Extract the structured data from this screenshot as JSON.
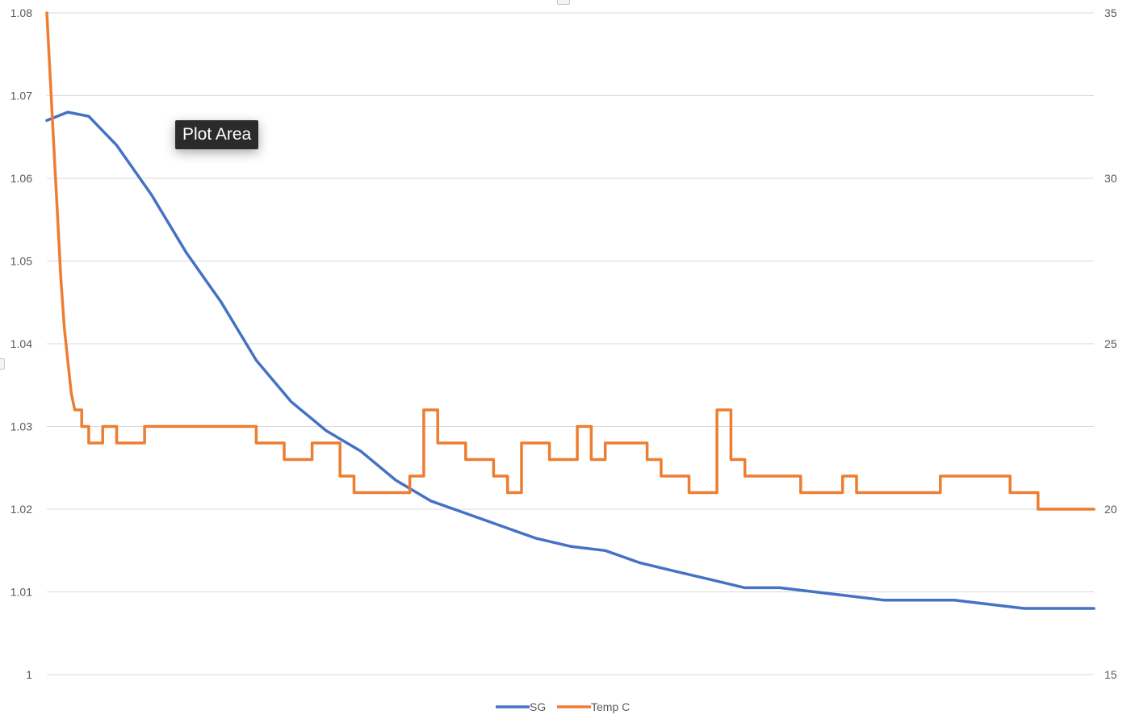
{
  "chart_data": {
    "type": "line",
    "y_left": {
      "ticks": [
        "1",
        "1.01",
        "1.02",
        "1.03",
        "1.04",
        "1.05",
        "1.06",
        "1.07",
        "1.08"
      ],
      "ylim": [
        1.0,
        1.08
      ]
    },
    "y_right": {
      "ticks": [
        "15",
        "20",
        "25",
        "30",
        "35"
      ],
      "ylim": [
        15,
        35
      ]
    },
    "grid": true,
    "legend_position": "bottom",
    "series": [
      {
        "name": "SG",
        "axis": "left",
        "color": "#4472c4",
        "x": [
          0,
          0.3,
          0.6,
          1,
          1.5,
          2,
          2.5,
          3,
          3.5,
          4,
          4.5,
          5,
          5.5,
          6,
          6.5,
          7,
          7.5,
          8,
          8.5,
          9,
          9.5,
          10,
          10.5,
          11,
          11.5,
          12,
          12.5,
          13,
          13.5,
          14,
          14.5,
          15
        ],
        "values": [
          1.067,
          1.068,
          1.0675,
          1.064,
          1.058,
          1.051,
          1.045,
          1.038,
          1.033,
          1.0295,
          1.027,
          1.0235,
          1.021,
          1.0195,
          1.018,
          1.0165,
          1.0155,
          1.015,
          1.0135,
          1.0125,
          1.0115,
          1.0105,
          1.0105,
          1.01,
          1.0095,
          1.009,
          1.009,
          1.009,
          1.0085,
          1.008,
          1.008,
          1.008
        ]
      },
      {
        "name": "Temp C",
        "axis": "right",
        "color": "#ed7d31",
        "x": [
          0,
          0.05,
          0.1,
          0.15,
          0.2,
          0.25,
          0.3,
          0.35,
          0.4,
          0.5,
          0.6,
          0.8,
          1.0,
          1.2,
          1.4,
          1.6,
          1.8,
          2.2,
          2.6,
          3.0,
          3.4,
          3.6,
          3.8,
          4.0,
          4.2,
          4.4,
          4.6,
          4.8,
          5.0,
          5.2,
          5.4,
          5.6,
          5.8,
          6.0,
          6.2,
          6.4,
          6.6,
          6.8,
          7.0,
          7.2,
          7.4,
          7.6,
          7.8,
          8.0,
          8.2,
          8.4,
          8.6,
          8.8,
          9.0,
          9.2,
          9.4,
          9.6,
          9.8,
          10.0,
          10.2,
          10.4,
          10.6,
          10.8,
          11.0,
          11.2,
          11.4,
          11.6,
          11.8,
          12.0,
          12.2,
          12.4,
          12.6,
          12.8,
          13.0,
          13.2,
          13.4,
          13.6,
          13.8,
          14.0,
          14.2,
          14.4,
          14.6,
          14.8,
          15.0
        ],
        "values": [
          35,
          33,
          31,
          29,
          27,
          25.5,
          24.5,
          23.5,
          23,
          22.5,
          22,
          22.5,
          22,
          22,
          22.5,
          22.5,
          22.5,
          22.5,
          22.5,
          22,
          21.5,
          21.5,
          22,
          22,
          21,
          20.5,
          20.5,
          20.5,
          20.5,
          21,
          23,
          22,
          22,
          21.5,
          21.5,
          21,
          20.5,
          22,
          22,
          21.5,
          21.5,
          22.5,
          21.5,
          22,
          22,
          22,
          21.5,
          21,
          21,
          20.5,
          20.5,
          23,
          21.5,
          21,
          21,
          21,
          21,
          20.5,
          20.5,
          20.5,
          21,
          20.5,
          20.5,
          20.5,
          20.5,
          20.5,
          20.5,
          21,
          21,
          21,
          21,
          21,
          20.5,
          20.5,
          20,
          20,
          20,
          20,
          20
        ]
      }
    ]
  }
}
